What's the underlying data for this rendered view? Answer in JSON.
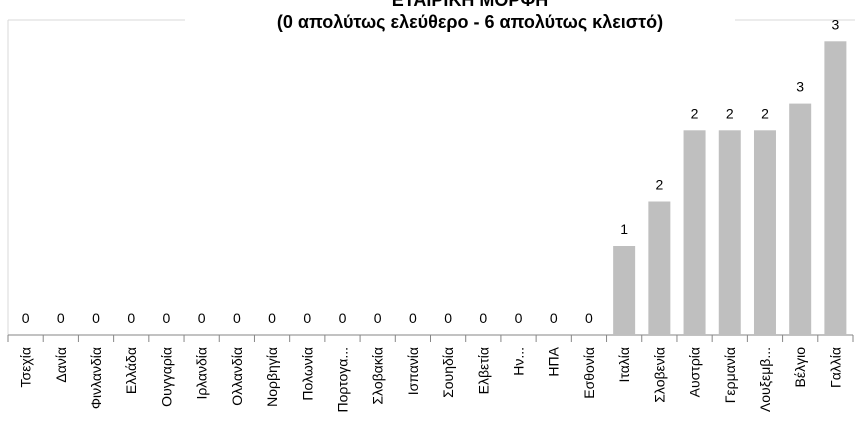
{
  "chart_data": {
    "type": "bar",
    "title": "ΕΤΑΙΡΙΚΗ ΜΟΡΦΗ",
    "subtitle": "(0 απολύτως ελεύθερο - 6 απολύτως κλειστό)",
    "categories": [
      "Τσεχία",
      "Δανία",
      "Φινλανδία",
      "Ελλάδα",
      "Ουγγαρία",
      "Ιρλανδία",
      "Ολλανδία",
      "Νορβηγία",
      "Πολωνία",
      "Πορτογα...",
      "Σλοβακία",
      "Ισπανία",
      "Σουηδία",
      "Ελβετία",
      "Ην...",
      "ΗΠΑ",
      "Εσθονία",
      "Ιταλία",
      "Σλοβενία",
      "Αυστρία",
      "Γερμανία",
      "Λουξεμβ...",
      "Βέλγιο",
      "Γαλλία"
    ],
    "values": [
      0,
      0,
      0,
      0,
      0,
      0,
      0,
      0,
      0,
      0,
      0,
      0,
      0,
      0,
      0,
      0,
      0,
      1.0,
      1.5,
      2.3,
      2.3,
      2.3,
      2.6,
      3.3
    ],
    "value_labels": [
      "0",
      "0",
      "0",
      "0",
      "0",
      "0",
      "0",
      "0",
      "0",
      "0",
      "0",
      "0",
      "0",
      "0",
      "0",
      "0",
      "0",
      "1",
      "2",
      "2",
      "2",
      "2",
      "3",
      "3"
    ],
    "color": "#bfbfbf"
  }
}
